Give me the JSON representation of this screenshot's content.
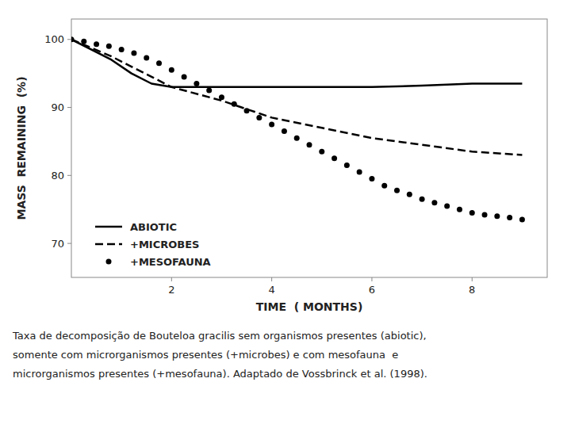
{
  "chart_data": {
    "type": "line",
    "xlabel": "TIME  ( MONTHS)",
    "ylabel": "MASS  REMAINING  (%)",
    "xlim": [
      0,
      9.5
    ],
    "ylim": [
      65,
      103
    ],
    "xticks": [
      2,
      4,
      6,
      8
    ],
    "yticks": [
      70,
      80,
      90,
      100
    ],
    "grid": false,
    "legend": "lower left",
    "series": [
      {
        "name": "ABIOTIC",
        "color": "#000000",
        "line_style": "solid",
        "x": [
          0,
          0.8,
          1.2,
          1.6,
          2.0,
          3.0,
          4.0,
          5.0,
          6.0,
          7.0,
          8.0,
          9.0
        ],
        "values": [
          100,
          97,
          95,
          93.5,
          93,
          93,
          93,
          93,
          93,
          93.2,
          93.5,
          93.5
        ]
      },
      {
        "name": "+MICROBES",
        "color": "#000000",
        "line_style": "dashed",
        "x": [
          0,
          0.8,
          1.2,
          1.6,
          2.0,
          3.0,
          4.0,
          5.0,
          6.0,
          7.0,
          8.0,
          9.0
        ],
        "values": [
          100,
          97.5,
          96,
          94.5,
          93,
          91,
          88.5,
          87,
          85.5,
          84.5,
          83.5,
          83
        ]
      },
      {
        "name": "+MESOFAUNA",
        "color": "#000000",
        "line_style": "none",
        "marker": "circle",
        "x": [
          0,
          0.25,
          0.5,
          0.75,
          1.0,
          1.25,
          1.5,
          1.75,
          2.0,
          2.25,
          2.5,
          2.75,
          3.0,
          3.25,
          3.5,
          3.75,
          4.0,
          4.25,
          4.5,
          4.75,
          5.0,
          5.25,
          5.5,
          5.75,
          6.0,
          6.25,
          6.5,
          6.75,
          7.0,
          7.25,
          7.5,
          7.75,
          8.0,
          8.25,
          8.5,
          8.75,
          9.0
        ],
        "values": [
          100,
          99.7,
          99.3,
          99.0,
          98.5,
          98.0,
          97.3,
          96.5,
          95.5,
          94.5,
          93.5,
          92.5,
          91.5,
          90.5,
          89.5,
          88.5,
          87.5,
          86.5,
          85.5,
          84.5,
          83.5,
          82.5,
          81.5,
          80.5,
          79.5,
          78.5,
          77.8,
          77.2,
          76.5,
          76.0,
          75.5,
          75.0,
          74.5,
          74.2,
          74.0,
          73.8,
          73.5
        ]
      }
    ],
    "caption": [
      "Taxa de decomposição de Bouteloa gracilis sem organismos presentes (abiotic),",
      "somente com microrganismos presentes (+microbes) e com mesofauna  e",
      "microrganismos presentes (+mesofauna). Adaptado de Vossbrinck et al. (1998)."
    ]
  }
}
